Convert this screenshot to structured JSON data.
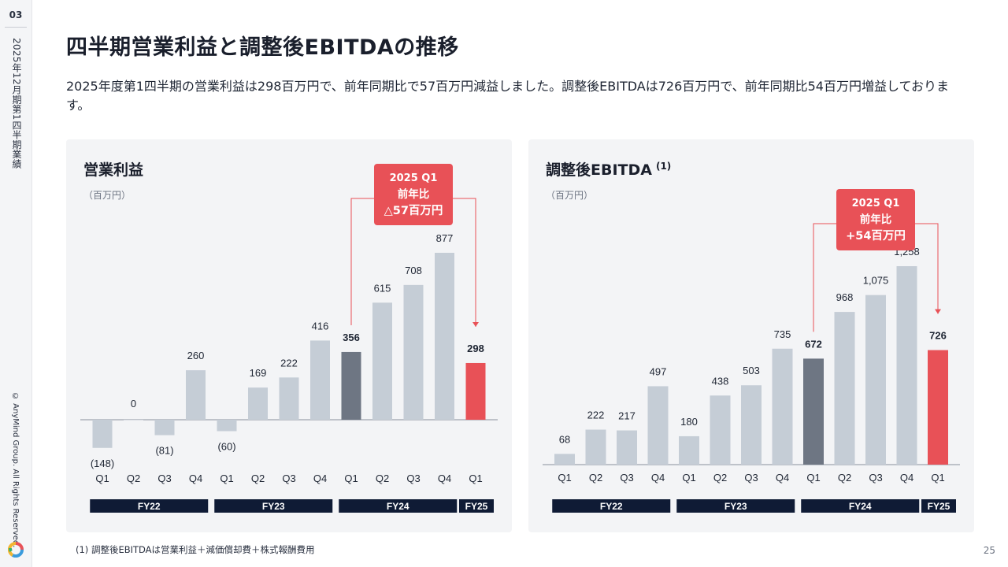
{
  "sidebar": {
    "page_number": "03",
    "doc_title": "2025年12月期第1四半期業績",
    "copyright": "© AnyMind Group. All Rights Reserved."
  },
  "header": {
    "title": "四半期営業利益と調整後EBITDAの推移",
    "lead": "2025年度第1四半期の営業利益は298百万円で、前年同期比で57百万円減益しました。調整後EBITDAは726百万円で、前年同期比54百万円増益しております。"
  },
  "footer": {
    "footnote": "(1) 調整後EBITDAは営業利益＋減価償却費＋株式報酬費用",
    "page": "25"
  },
  "colors": {
    "bar_default": "#c5cdd6",
    "bar_prior_year": "#6e7683",
    "bar_current": "#e85157",
    "fy_band": "#0f1b35",
    "callout": "#e85157"
  },
  "chart_data": [
    {
      "type": "bar",
      "title": "営業利益",
      "title_sup": "",
      "unit": "（百万円）",
      "categories": [
        "Q1",
        "Q2",
        "Q3",
        "Q4",
        "Q1",
        "Q2",
        "Q3",
        "Q4",
        "Q1",
        "Q2",
        "Q3",
        "Q4",
        "Q1"
      ],
      "values": [
        -148,
        0,
        -81,
        260,
        -60,
        169,
        222,
        416,
        356,
        615,
        708,
        877,
        298
      ],
      "value_labels": [
        "(148)",
        "0",
        "(81)",
        "260",
        "(60)",
        "169",
        "222",
        "416",
        "356",
        "615",
        "708",
        "877",
        "298"
      ],
      "fiscal_years": [
        {
          "label": "FY22",
          "from": 0,
          "to": 3
        },
        {
          "label": "FY23",
          "from": 4,
          "to": 7
        },
        {
          "label": "FY24",
          "from": 8,
          "to": 11
        },
        {
          "label": "FY25",
          "from": 12,
          "to": 12
        }
      ],
      "highlight_prior": 8,
      "highlight_current": 12,
      "callout": {
        "line1": "2025 Q1",
        "line2": "前年比",
        "line3": "△57百万円"
      },
      "ylim": [
        -200,
        950
      ],
      "grid": false
    },
    {
      "type": "bar",
      "title": "調整後EBITDA",
      "title_sup": "(1)",
      "unit": "（百万円）",
      "categories": [
        "Q1",
        "Q2",
        "Q3",
        "Q4",
        "Q1",
        "Q2",
        "Q3",
        "Q4",
        "Q1",
        "Q2",
        "Q3",
        "Q4",
        "Q1"
      ],
      "values": [
        68,
        222,
        217,
        497,
        180,
        438,
        503,
        735,
        672,
        968,
        1075,
        1258,
        726
      ],
      "value_labels": [
        "68",
        "222",
        "217",
        "497",
        "180",
        "438",
        "503",
        "735",
        "672",
        "968",
        "1,075",
        "1,258",
        "726"
      ],
      "fiscal_years": [
        {
          "label": "FY22",
          "from": 0,
          "to": 3
        },
        {
          "label": "FY23",
          "from": 4,
          "to": 7
        },
        {
          "label": "FY24",
          "from": 8,
          "to": 11
        },
        {
          "label": "FY25",
          "from": 12,
          "to": 12
        }
      ],
      "highlight_prior": 8,
      "highlight_current": 12,
      "callout": {
        "line1": "2025 Q1",
        "line2": "前年比",
        "line3": "+54百万円"
      },
      "ylim": [
        0,
        1400
      ],
      "grid": false
    }
  ]
}
